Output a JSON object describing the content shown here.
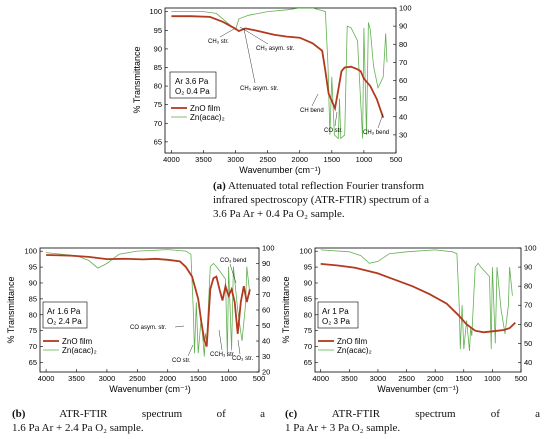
{
  "colors": {
    "zno": "#b23a1e",
    "zn": "#63b052",
    "axis": "#000000"
  },
  "charts": [
    {
      "id": "a",
      "xlabel": "Wavenumber (cm⁻¹)",
      "ylabel": "% Transmittance",
      "yticks_left": [
        "65",
        "70",
        "75",
        "80",
        "85",
        "90",
        "95",
        "100"
      ],
      "yticks_right": [
        "30",
        "40",
        "50",
        "60",
        "70",
        "80",
        "90",
        "100"
      ],
      "xticks": [
        "4000",
        "3500",
        "3000",
        "2500",
        "2000",
        "1500",
        "1000",
        "500"
      ],
      "gas": [
        "Ar  3.6 Pa",
        "O₂  0.4 Pa"
      ],
      "legend": [
        "ZnO film",
        "Zn(acac)₂"
      ],
      "annotations": [
        "CH₃ str.",
        "CH₃ asym. str.",
        "CH₃ asym. str.",
        "CH bend",
        "CO str.",
        "CH₃ bend"
      ]
    },
    {
      "id": "b",
      "xlabel": "Wavenumber (cm⁻¹)",
      "ylabel": "% Transmittance",
      "yticks_left": [
        "65",
        "70",
        "75",
        "80",
        "85",
        "90",
        "95",
        "100"
      ],
      "yticks_right": [
        "20",
        "30",
        "40",
        "50",
        "60",
        "70",
        "80",
        "90",
        "100"
      ],
      "xticks": [
        "4000",
        "3500",
        "3000",
        "2500",
        "2000",
        "1500",
        "1000",
        "500"
      ],
      "gas": [
        "Ar  1.6 Pa",
        "O₂  2.4 Pa"
      ],
      "legend": [
        "ZnO film",
        "Zn(acac)₂"
      ],
      "annotations": [
        "CO₃ bend",
        "CO asym. str.",
        "CO str.",
        "CCH₃ str.",
        "CO₃ str."
      ]
    },
    {
      "id": "c",
      "xlabel": "Wavenumber (cm⁻¹)",
      "ylabel": "% Transmittance",
      "yticks_left": [
        "65",
        "70",
        "75",
        "80",
        "85",
        "90",
        "95",
        "100"
      ],
      "yticks_right": [
        "40",
        "50",
        "60",
        "70",
        "80",
        "90",
        "100"
      ],
      "xticks": [
        "4000",
        "3500",
        "3000",
        "2500",
        "2000",
        "1500",
        "1000",
        "500"
      ],
      "gas": [
        "Ar  1 Pa",
        "O₂  3 Pa"
      ],
      "legend": [
        "ZnO film",
        "Zn(acac)₂"
      ],
      "annotations": []
    }
  ],
  "captions": {
    "a_label": "(a)",
    "a_text": "Attenuated total reflection Fourier transform infrared spectroscopy (ATR-FTIR) spectrum of a 3.6 Pa Ar + 0.4 Pa O₂ sample.",
    "b_label": "(b)",
    "b_line1": "ATR-FTIR spectrum of a",
    "b_line2": "1.6 Pa Ar + 2.4 Pa O₂ sample.",
    "c_label": "(c)",
    "c_line1": "ATR-FTIR spectrum of a",
    "c_line2": "1 Pa Ar + 3 Pa O₂ sample."
  },
  "chart_data": [
    {
      "type": "line",
      "title": "",
      "xlabel": "Wavenumber (cm⁻¹)",
      "ylabel": "% Transmittance",
      "xlim": [
        4100,
        500
      ],
      "ylim": [
        62,
        101
      ],
      "ylim_right": [
        20,
        100
      ],
      "legend": "lower-left",
      "series": [
        {
          "name": "ZnO film",
          "axis": "left",
          "x": [
            4000,
            3700,
            3400,
            3200,
            3000,
            2950,
            2850,
            2700,
            2400,
            2200,
            2000,
            1800,
            1650,
            1600,
            1550,
            1500,
            1450,
            1400,
            1350,
            1300,
            1200,
            1100,
            1050,
            1000,
            900,
            800,
            700
          ],
          "y": [
            98.8,
            98.8,
            98.6,
            97.3,
            95.4,
            94.8,
            95.5,
            95.0,
            93.8,
            93.3,
            93.0,
            91.5,
            89.5,
            84.0,
            78.0,
            76.0,
            74.0,
            79.0,
            84.0,
            85.0,
            85.2,
            84.5,
            84.0,
            82.0,
            80.0,
            76.5,
            71.5
          ]
        },
        {
          "name": "Zn(acac)₂",
          "axis": "right",
          "x": [
            4000,
            3500,
            3300,
            3100,
            3000,
            2950,
            2800,
            2500,
            2200,
            2000,
            1800,
            1700,
            1600,
            1560,
            1530,
            1500,
            1460,
            1400,
            1380,
            1360,
            1300,
            1260,
            1200,
            1100,
            1020,
            1000,
            960,
            930,
            900,
            850,
            780,
            700,
            660,
            640
          ],
          "y": [
            98,
            98,
            97,
            91,
            88,
            94,
            96,
            98,
            99,
            100,
            100,
            99,
            98,
            68,
            30,
            62,
            30,
            28,
            50,
            28,
            30,
            90,
            89,
            82,
            28,
            89,
            30,
            92,
            88,
            68,
            56,
            62,
            86,
            70
          ]
        }
      ]
    },
    {
      "type": "line",
      "title": "",
      "xlabel": "Wavenumber (cm⁻¹)",
      "ylabel": "% Transmittance",
      "xlim": [
        4100,
        500
      ],
      "ylim": [
        62,
        101
      ],
      "ylim_right": [
        20,
        100
      ],
      "legend": "lower-left",
      "series": [
        {
          "name": "ZnO film",
          "axis": "left",
          "x": [
            4000,
            3600,
            3300,
            3000,
            2700,
            2400,
            2200,
            2000,
            1800,
            1700,
            1600,
            1500,
            1450,
            1400,
            1360,
            1300,
            1250,
            1200,
            1150,
            1100,
            1050,
            1000,
            950,
            900,
            850,
            800,
            750,
            700,
            650
          ],
          "y": [
            98.8,
            98.6,
            98.2,
            97.5,
            97.6,
            97.4,
            97.6,
            97.3,
            96.8,
            95.0,
            92.0,
            85.0,
            78.0,
            72.0,
            70.0,
            88.0,
            91.5,
            92.0,
            88.0,
            84.5,
            89.0,
            86.0,
            88.0,
            84.0,
            74.0,
            84.0,
            89.0,
            84.0,
            88.0
          ]
        },
        {
          "name": "Zn(acac)₂",
          "axis": "right",
          "x": [
            4000,
            3500,
            3300,
            3150,
            3000,
            2800,
            2500,
            2000,
            1700,
            1620,
            1580,
            1560,
            1530,
            1500,
            1450,
            1400,
            1380,
            1360,
            1300,
            1250,
            1200,
            1050,
            1020,
            1000,
            950,
            920,
            850,
            780,
            720,
            700,
            650
          ],
          "y": [
            97,
            95,
            92,
            87,
            90,
            96,
            98,
            99,
            98,
            96,
            60,
            32,
            65,
            32,
            55,
            30,
            45,
            40,
            88,
            90,
            88,
            80,
            30,
            88,
            34,
            88,
            60,
            40,
            64,
            88,
            70
          ]
        }
      ]
    },
    {
      "type": "line",
      "title": "",
      "xlabel": "Wavenumber (cm⁻¹)",
      "ylabel": "% Transmittance",
      "xlim": [
        4100,
        500
      ],
      "ylim": [
        62,
        101
      ],
      "ylim_right": [
        35,
        100
      ],
      "legend": "lower-left",
      "series": [
        {
          "name": "ZnO film",
          "axis": "left",
          "x": [
            4000,
            3700,
            3400,
            3000,
            2700,
            2400,
            2100,
            1800,
            1600,
            1450,
            1300,
            1150,
            1000,
            900,
            800,
            700,
            600
          ],
          "y": [
            96.0,
            95.5,
            94.8,
            93.0,
            91.0,
            89.0,
            86.5,
            83.5,
            80.0,
            77.0,
            75.0,
            74.5,
            74.8,
            75.0,
            75.2,
            75.8,
            77.5
          ]
        },
        {
          "name": "Zn(acac)₂",
          "axis": "right",
          "x": [
            4000,
            3500,
            3300,
            3150,
            3000,
            2800,
            2500,
            2000,
            1700,
            1620,
            1580,
            1560,
            1530,
            1500,
            1450,
            1400,
            1380,
            1360,
            1300,
            1250,
            1200,
            1050,
            1020,
            1000,
            950,
            920,
            850,
            780,
            720,
            700,
            650
          ],
          "y": [
            99,
            98,
            96,
            92,
            93,
            97,
            98,
            99,
            98,
            97,
            70,
            47,
            70,
            47,
            62,
            46,
            58,
            54,
            90,
            92,
            90,
            85,
            47,
            90,
            50,
            90,
            68,
            55,
            70,
            90,
            75
          ]
        }
      ]
    }
  ]
}
